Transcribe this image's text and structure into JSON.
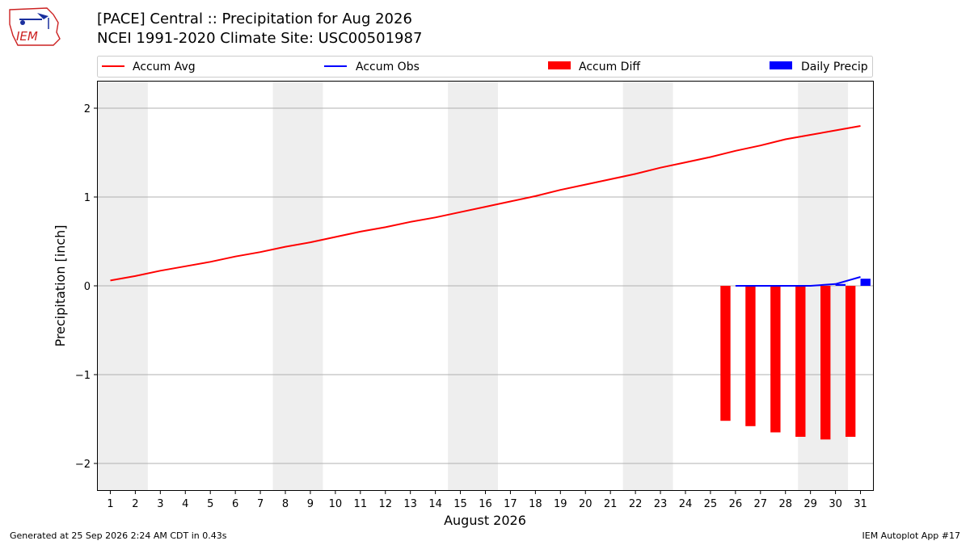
{
  "title_line1": "[PACE] Central :: Precipitation for Aug 2026",
  "title_line2": "NCEI 1991-2020 Climate Site: USC00501987",
  "logo_text": "IEM",
  "footer_left": "Generated at 25 Sep 2026 2:24 AM CDT in 0.43s",
  "footer_right": "IEM Autoplot App #17",
  "colors": {
    "accum_avg": "#ff0000",
    "accum_obs": "#0000ff",
    "accum_diff": "#ff0000",
    "daily_precip": "#0000ff",
    "weekend_shade": "#eeeeee",
    "grid": "#b0b0b0"
  },
  "chart_data": {
    "type": "line",
    "xlabel": "August 2026",
    "ylabel": "Precipitation [inch]",
    "xlim": [
      0.5,
      31.5
    ],
    "ylim": [
      -2.3,
      2.3
    ],
    "yticks": [
      2,
      1,
      0,
      -1,
      -2
    ],
    "ytick_labels": [
      "2",
      "1",
      "0",
      "−1",
      "−2"
    ],
    "grid": "horizontal",
    "legend_position": "top",
    "weekends": [
      [
        1,
        2
      ],
      [
        8,
        9
      ],
      [
        15,
        16
      ],
      [
        22,
        23
      ],
      [
        29,
        30
      ]
    ],
    "x": [
      1,
      2,
      3,
      4,
      5,
      6,
      7,
      8,
      9,
      10,
      11,
      12,
      13,
      14,
      15,
      16,
      17,
      18,
      19,
      20,
      21,
      22,
      23,
      24,
      25,
      26,
      27,
      28,
      29,
      30,
      31
    ],
    "legend": [
      "Accum Avg",
      "Accum Obs",
      "Accum Diff",
      "Daily Precip"
    ],
    "series": [
      {
        "name": "Accum Avg",
        "kind": "line",
        "x": [
          1,
          2,
          3,
          4,
          5,
          6,
          7,
          8,
          9,
          10,
          11,
          12,
          13,
          14,
          15,
          16,
          17,
          18,
          19,
          20,
          21,
          22,
          23,
          24,
          25,
          26,
          27,
          28,
          29,
          30,
          31
        ],
        "values": [
          0.06,
          0.11,
          0.17,
          0.22,
          0.27,
          0.33,
          0.38,
          0.44,
          0.49,
          0.55,
          0.61,
          0.66,
          0.72,
          0.77,
          0.83,
          0.89,
          0.95,
          1.01,
          1.08,
          1.14,
          1.2,
          1.26,
          1.33,
          1.39,
          1.45,
          1.52,
          1.58,
          1.65,
          1.7,
          1.75,
          1.8
        ]
      },
      {
        "name": "Accum Obs",
        "kind": "line",
        "x": [
          26,
          27,
          28,
          29,
          30,
          31
        ],
        "values": [
          0.0,
          0.0,
          0.0,
          0.0,
          0.02,
          0.1
        ]
      },
      {
        "name": "Accum Diff",
        "kind": "bar",
        "x": [
          26,
          27,
          28,
          29,
          30,
          31
        ],
        "values": [
          -1.52,
          -1.58,
          -1.65,
          -1.7,
          -1.73,
          -1.7
        ]
      },
      {
        "name": "Daily Precip",
        "kind": "bar",
        "x": [
          30,
          31
        ],
        "values": [
          0.02,
          0.08
        ]
      }
    ]
  }
}
